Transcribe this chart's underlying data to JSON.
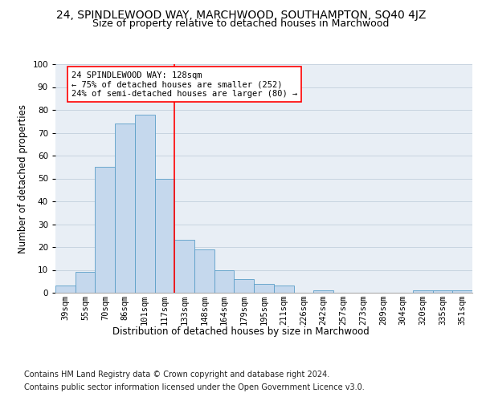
{
  "title_line1": "24, SPINDLEWOOD WAY, MARCHWOOD, SOUTHAMPTON, SO40 4JZ",
  "title_line2": "Size of property relative to detached houses in Marchwood",
  "xlabel": "Distribution of detached houses by size in Marchwood",
  "ylabel": "Number of detached properties",
  "categories": [
    "39sqm",
    "55sqm",
    "70sqm",
    "86sqm",
    "101sqm",
    "117sqm",
    "133sqm",
    "148sqm",
    "164sqm",
    "179sqm",
    "195sqm",
    "211sqm",
    "226sqm",
    "242sqm",
    "257sqm",
    "273sqm",
    "289sqm",
    "304sqm",
    "320sqm",
    "335sqm",
    "351sqm"
  ],
  "values": [
    3,
    9,
    55,
    74,
    78,
    50,
    23,
    19,
    10,
    6,
    4,
    3,
    0,
    1,
    0,
    0,
    0,
    0,
    1,
    1,
    1
  ],
  "bar_color": "#c5d8ed",
  "bar_edge_color": "#5a9ec8",
  "vline_color": "red",
  "vline_x_index": 5.5,
  "annotation_text": "24 SPINDLEWOOD WAY: 128sqm\n← 75% of detached houses are smaller (252)\n24% of semi-detached houses are larger (80) →",
  "annotation_box_color": "white",
  "annotation_box_edge_color": "red",
  "ylim": [
    0,
    100
  ],
  "yticks": [
    0,
    10,
    20,
    30,
    40,
    50,
    60,
    70,
    80,
    90,
    100
  ],
  "grid_color": "#c8d4e0",
  "background_color": "#e8eef5",
  "footer_line1": "Contains HM Land Registry data © Crown copyright and database right 2024.",
  "footer_line2": "Contains public sector information licensed under the Open Government Licence v3.0.",
  "title_fontsize": 10,
  "subtitle_fontsize": 9,
  "axis_label_fontsize": 8.5,
  "tick_fontsize": 7.5,
  "annotation_fontsize": 7.5,
  "footer_fontsize": 7
}
